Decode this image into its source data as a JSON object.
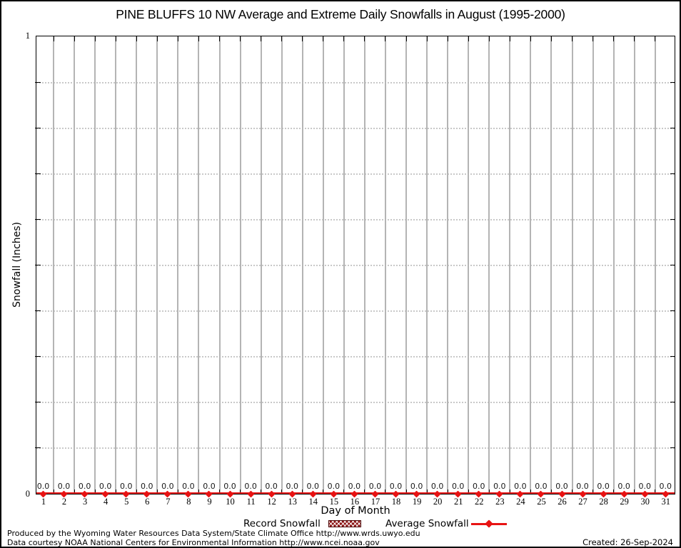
{
  "title": "PINE BLUFFS 10 NW Average and Extreme Daily Snowfalls in August (1995-2000)",
  "chart_data": {
    "type": "line",
    "title": "PINE BLUFFS 10 NW Average and Extreme Daily Snowfalls in August (1995-2000)",
    "xlabel": "Day of Month",
    "ylabel": "Snowfall (Inches)",
    "xlim": [
      1,
      31
    ],
    "ylim": [
      0,
      1
    ],
    "ytick_labels": [
      "0",
      "1"
    ],
    "grid": {
      "vertical": "solid gray lines at half-day boundaries",
      "horizontal": "dotted gray lines every 0.1"
    },
    "legend_position": "bottom-center",
    "categories": [
      1,
      2,
      3,
      4,
      5,
      6,
      7,
      8,
      9,
      10,
      11,
      12,
      13,
      14,
      15,
      16,
      17,
      18,
      19,
      20,
      21,
      22,
      23,
      24,
      25,
      26,
      27,
      28,
      29,
      30,
      31
    ],
    "series": [
      {
        "name": "Record Snowfall",
        "style": "hatched-box",
        "color": "#8b1212",
        "values": [
          0,
          0,
          0,
          0,
          0,
          0,
          0,
          0,
          0,
          0,
          0,
          0,
          0,
          0,
          0,
          0,
          0,
          0,
          0,
          0,
          0,
          0,
          0,
          0,
          0,
          0,
          0,
          0,
          0,
          0,
          0
        ]
      },
      {
        "name": "Average Snowfall",
        "style": "line+point",
        "color": "#e81313",
        "values": [
          0,
          0,
          0,
          0,
          0,
          0,
          0,
          0,
          0,
          0,
          0,
          0,
          0,
          0,
          0,
          0,
          0,
          0,
          0,
          0,
          0,
          0,
          0,
          0,
          0,
          0,
          0,
          0,
          0,
          0,
          0
        ]
      }
    ],
    "point_labels": [
      "0.0",
      "0.0",
      "0.0",
      "0.0",
      "0.0",
      "0.0",
      "0.0",
      "0.0",
      "0.0",
      "0.0",
      "0.0",
      "0.0",
      "0.0",
      "0.0",
      "0.0",
      "0.0",
      "0.0",
      "0.0",
      "0.0",
      "0.0",
      "0.0",
      "0.0",
      "0.0",
      "0.0",
      "0.0",
      "0.0",
      "0.0",
      "0.0",
      "0.0",
      "0.0",
      "0.0"
    ]
  },
  "y_axis": {
    "label": "Snowfall (Inches)",
    "max_label": "1",
    "min_label": "0"
  },
  "x_axis": {
    "label": "Day of Month"
  },
  "legend": {
    "record_label": "Record Snowfall",
    "average_label": "Average Snowfall"
  },
  "footer": {
    "produced_by": "Produced by the Wyoming Water Resources Data System/State Climate Office http://www.wrds.uwyo.edu",
    "data_courtesy": "Data courtesy NOAA National Centers for Environmental Information http://www.ncei.noaa.gov",
    "created": "Created: 26-Sep-2024"
  },
  "colors": {
    "average_line": "#e81313",
    "record_swatch": "#8b1212",
    "grid_vertical": "#b4b4b4",
    "grid_horizontal": "#c9c9c9",
    "border": "#000000"
  }
}
